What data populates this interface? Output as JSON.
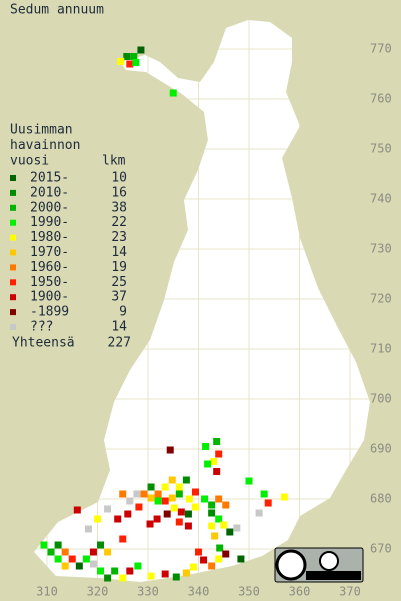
{
  "map": {
    "title": "Sedum annuum",
    "legend": {
      "header": [
        "Uusimman",
        "havainnon",
        "vuosi"
      ],
      "count_header": "lkm",
      "items": [
        {
          "label": "2015-",
          "count": 10,
          "color": "#006400"
        },
        {
          "label": "2010-",
          "count": 16,
          "color": "#008c00"
        },
        {
          "label": "2000-",
          "count": 38,
          "color": "#00b400"
        },
        {
          "label": "1990-",
          "count": 22,
          "color": "#00ee00"
        },
        {
          "label": "1980-",
          "count": 23,
          "color": "#ffff00"
        },
        {
          "label": "1970-",
          "count": 14,
          "color": "#ffc800"
        },
        {
          "label": "1960-",
          "count": 19,
          "color": "#ff7800"
        },
        {
          "label": "1950-",
          "count": 25,
          "color": "#ff2000"
        },
        {
          "label": "1900-",
          "count": 37,
          "color": "#cc0000"
        },
        {
          "label": "-1899",
          "count": 9,
          "color": "#800000"
        },
        {
          "label": "???",
          "count": 14,
          "color": "#c8c8c8"
        }
      ],
      "total": {
        "label": "Yhteensä",
        "count": 227
      }
    },
    "yticks": [
      770,
      760,
      750,
      740,
      730,
      720,
      710,
      700,
      690,
      680,
      670
    ],
    "xticks": [
      310,
      320,
      330,
      340,
      350,
      360,
      370
    ],
    "points": [
      [
        325.8,
        768.5,
        1
      ],
      [
        327.2,
        768.5,
        2
      ],
      [
        328.6,
        769.8,
        0
      ],
      [
        324.6,
        767.5,
        4
      ],
      [
        326.4,
        767,
        7
      ],
      [
        327.6,
        767.3,
        3
      ],
      [
        335,
        761.2,
        3
      ],
      [
        334.4,
        689.8,
        9
      ],
      [
        341.4,
        690.5,
        3
      ],
      [
        343.6,
        691.5,
        2
      ],
      [
        344,
        689,
        7
      ],
      [
        343,
        687.5,
        4
      ],
      [
        341.8,
        687,
        3
      ],
      [
        343.6,
        685.5,
        8
      ],
      [
        332,
        681,
        6
      ],
      [
        333.4,
        682.4,
        4
      ],
      [
        334.8,
        683.8,
        5
      ],
      [
        336.2,
        682.4,
        4
      ],
      [
        337.6,
        683.8,
        1
      ],
      [
        336.2,
        681,
        2
      ],
      [
        334.8,
        680.2,
        5
      ],
      [
        333.4,
        679.6,
        7
      ],
      [
        332,
        679.6,
        3
      ],
      [
        330.6,
        680.2,
        5
      ],
      [
        329.2,
        681,
        6
      ],
      [
        327.8,
        681,
        10
      ],
      [
        326.4,
        679.6,
        10
      ],
      [
        325,
        681,
        6
      ],
      [
        330.6,
        682.4,
        1
      ],
      [
        338.2,
        680,
        4
      ],
      [
        339.4,
        681.4,
        7
      ],
      [
        339.4,
        678.4,
        4
      ],
      [
        338,
        677,
        0
      ],
      [
        336.6,
        677.4,
        8
      ],
      [
        335.2,
        678.2,
        4
      ],
      [
        333.8,
        677,
        9
      ],
      [
        331.8,
        676,
        8
      ],
      [
        330.4,
        675,
        8
      ],
      [
        336.2,
        675.4,
        7
      ],
      [
        338,
        674.6,
        8
      ],
      [
        341.2,
        680,
        3
      ],
      [
        342.6,
        678.8,
        2
      ],
      [
        344,
        680,
        6
      ],
      [
        345.4,
        678.8,
        6
      ],
      [
        342.6,
        677.2,
        1
      ],
      [
        344,
        676,
        3
      ],
      [
        342.6,
        674.6,
        4
      ],
      [
        345,
        674.8,
        4
      ],
      [
        346.2,
        673.4,
        0
      ],
      [
        347.6,
        674.2,
        10
      ],
      [
        343.2,
        672.6,
        5
      ],
      [
        352,
        677.2,
        10
      ],
      [
        353,
        681,
        3
      ],
      [
        350,
        683.6,
        3
      ],
      [
        357,
        680.4,
        4
      ],
      [
        353.8,
        679.2,
        7
      ],
      [
        318.2,
        674,
        10
      ],
      [
        320,
        676,
        4
      ],
      [
        322,
        678,
        10
      ],
      [
        324,
        676,
        8
      ],
      [
        326,
        677,
        8
      ],
      [
        328.2,
        678.4,
        7
      ],
      [
        316,
        677.8,
        8
      ],
      [
        325,
        672,
        7
      ],
      [
        309.4,
        670.8,
        3
      ],
      [
        310.8,
        669.4,
        2
      ],
      [
        312.2,
        670.8,
        1
      ],
      [
        312.2,
        668,
        3
      ],
      [
        313.6,
        669.4,
        6
      ],
      [
        315,
        668,
        7
      ],
      [
        313.6,
        666.6,
        5
      ],
      [
        316.4,
        666.6,
        0
      ],
      [
        317.8,
        668,
        3
      ],
      [
        319.2,
        669.4,
        8
      ],
      [
        320.6,
        670.8,
        1
      ],
      [
        322,
        669.4,
        5
      ],
      [
        319.2,
        667,
        10
      ],
      [
        320.6,
        665.6,
        3
      ],
      [
        322,
        664.2,
        1
      ],
      [
        323.4,
        665.6,
        2
      ],
      [
        325,
        664.2,
        4
      ],
      [
        326.4,
        665.6,
        8
      ],
      [
        328,
        666.6,
        3
      ],
      [
        330.6,
        664.6,
        4
      ],
      [
        333.4,
        665,
        8
      ],
      [
        335.6,
        664.4,
        1
      ],
      [
        337.6,
        665.2,
        5
      ],
      [
        339,
        666.4,
        4
      ],
      [
        341,
        667.8,
        8
      ],
      [
        340,
        669.4,
        7
      ],
      [
        342.6,
        666.6,
        6
      ],
      [
        344,
        668,
        4
      ],
      [
        344.2,
        670.2,
        2
      ],
      [
        345.4,
        669,
        9
      ],
      [
        348.4,
        668,
        0
      ]
    ]
  }
}
